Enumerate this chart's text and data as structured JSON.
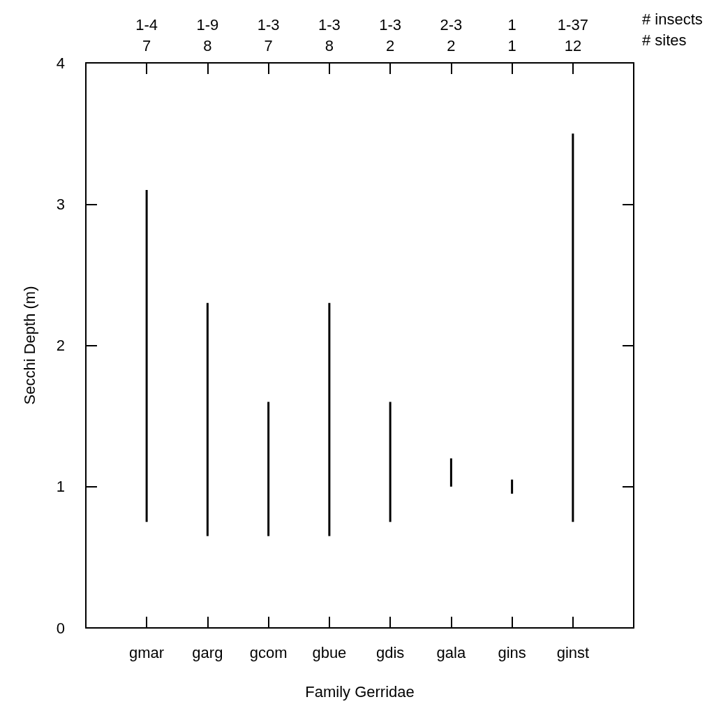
{
  "chart_data": {
    "type": "bar",
    "xlabel": "Family Gerridae",
    "ylabel": "Secchi Depth (m)",
    "categories": [
      "gmar",
      "garg",
      "gcom",
      "gbue",
      "gdis",
      "gala",
      "gins",
      "ginst"
    ],
    "base": [
      0.75,
      0.65,
      0.65,
      0.65,
      0.75,
      1.0,
      0.95,
      0.75
    ],
    "values": [
      2.35,
      1.65,
      0.95,
      1.65,
      0.85,
      0.2,
      0.1,
      2.75
    ],
    "color": "#000000",
    "ylim": [
      0,
      4
    ],
    "yticks": [
      0,
      1,
      2,
      3,
      4
    ],
    "grid": false,
    "annotations": [
      {
        "text": "1-4\n7",
        "x": "gmar"
      },
      {
        "text": "1-9\n8",
        "x": "garg"
      },
      {
        "text": "1-3\n7",
        "x": "gcom"
      },
      {
        "text": "1-3\n8",
        "x": "gbue"
      },
      {
        "text": "1-3\n2",
        "x": "gdis"
      },
      {
        "text": "2-3\n2",
        "x": "gala"
      },
      {
        "text": "1\n1",
        "x": "gins"
      },
      {
        "text": "1-37\n12",
        "x": "ginst"
      },
      "# insects\n# sites"
    ]
  }
}
